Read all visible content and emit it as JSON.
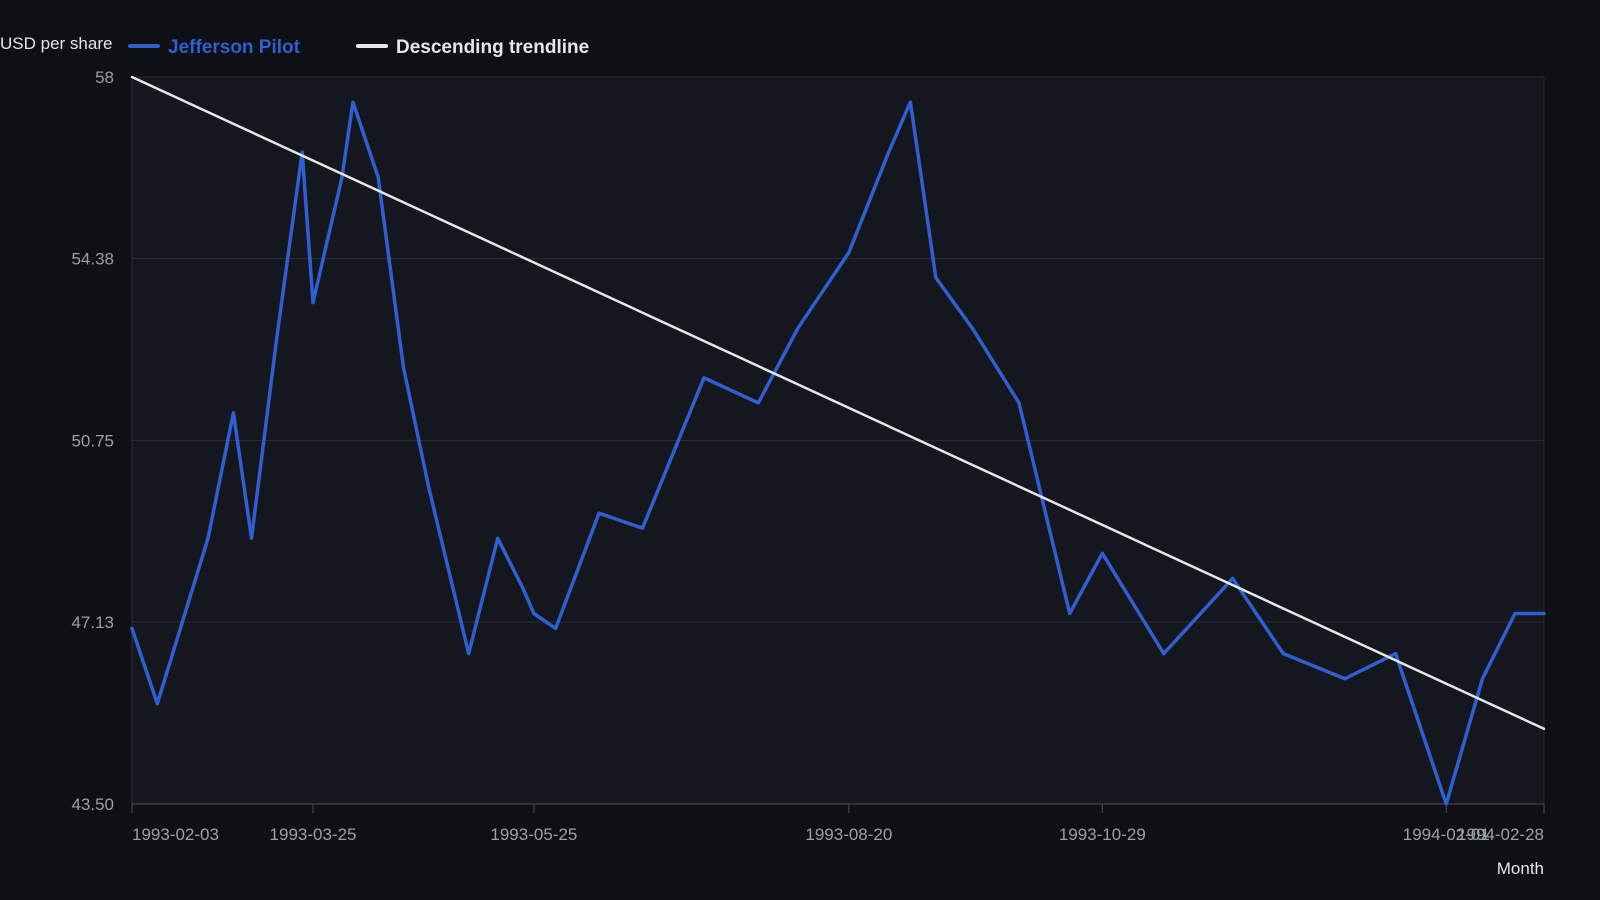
{
  "chart_data": {
    "type": "line",
    "ylabel": "USD per share",
    "xlabel": "Month",
    "ylim": [
      43.5,
      58
    ],
    "yticks": [
      "43.50",
      "47.13",
      "50.75",
      "54.38",
      "58"
    ],
    "xticks": [
      "1993-02-03",
      "1993-03-25",
      "1993-05-25",
      "1993-08-20",
      "1993-10-29",
      "1994-02-01",
      "1994-02-28"
    ],
    "legend_position": "top-left",
    "grid": true,
    "series": [
      {
        "name": "Jefferson Pilot",
        "color": "#2f5fd0",
        "x": [
          "1993-02-03",
          "1993-02-10",
          "1993-02-24",
          "1993-03-03",
          "1993-03-08",
          "1993-03-15",
          "1993-03-22",
          "1993-03-25",
          "1993-04-02",
          "1993-04-05",
          "1993-04-12",
          "1993-04-19",
          "1993-04-26",
          "1993-05-07",
          "1993-05-15",
          "1993-05-22",
          "1993-05-25",
          "1993-05-31",
          "1993-06-12",
          "1993-06-24",
          "1993-07-11",
          "1993-07-26",
          "1993-08-06",
          "1993-08-20",
          "1993-08-31",
          "1993-09-06",
          "1993-09-13",
          "1993-09-23",
          "1993-10-06",
          "1993-10-20",
          "1993-10-29",
          "1993-11-15",
          "1993-12-04",
          "1993-12-18",
          "1994-01-04",
          "1994-01-18",
          "1994-02-01",
          "1994-02-11",
          "1994-02-20",
          "1994-02-28"
        ],
        "values": [
          47.0,
          45.5,
          48.8,
          51.3,
          48.8,
          52.8,
          56.5,
          53.5,
          56.0,
          57.5,
          56.0,
          52.2,
          49.8,
          46.5,
          48.8,
          47.8,
          47.3,
          47.0,
          49.3,
          49.0,
          52.0,
          51.5,
          53.0,
          54.5,
          56.5,
          57.5,
          54.0,
          53.0,
          51.5,
          47.3,
          48.5,
          46.5,
          48.0,
          46.5,
          46.0,
          46.5,
          43.5,
          46.0,
          47.3,
          47.3
        ]
      },
      {
        "name": "Descending trendline",
        "color": "#e6e6e6",
        "x": [
          "1993-02-03",
          "1994-02-28"
        ],
        "values": [
          58,
          45
        ]
      }
    ]
  }
}
